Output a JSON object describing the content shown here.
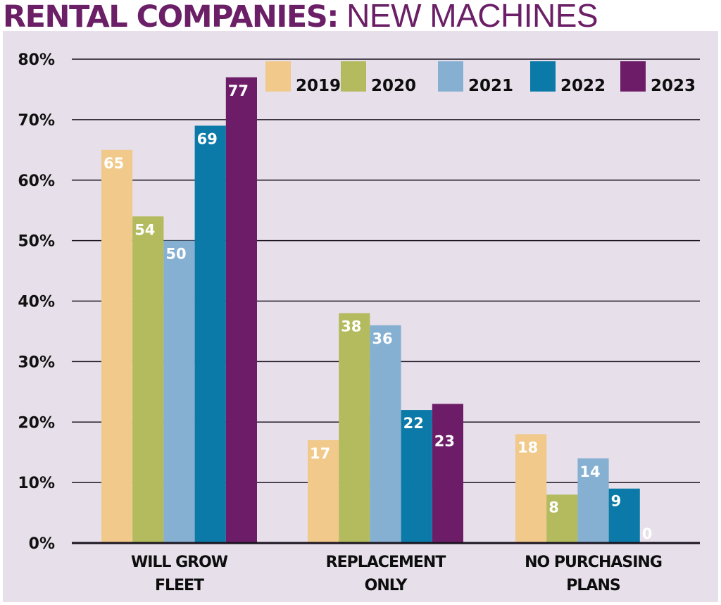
{
  "chart_data": {
    "type": "bar",
    "title_bold": "RENTAL COMPANIES:",
    "title_light": "NEW MACHINES",
    "categories": [
      [
        "WILL GROW",
        "FLEET"
      ],
      [
        "REPLACEMENT",
        "ONLY"
      ],
      [
        "NO PURCHASING",
        "PLANS"
      ]
    ],
    "series": [
      {
        "name": "2019",
        "color": "#f0c98b",
        "values": [
          65,
          17,
          18
        ]
      },
      {
        "name": "2020",
        "color": "#b3bb5e",
        "values": [
          54,
          38,
          8
        ]
      },
      {
        "name": "2021",
        "color": "#86b0d1",
        "values": [
          50,
          36,
          14
        ]
      },
      {
        "name": "2022",
        "color": "#0b7aa8",
        "values": [
          69,
          22,
          9
        ]
      },
      {
        "name": "2023",
        "color": "#6d1d68",
        "values": [
          77,
          23,
          0
        ]
      }
    ],
    "yticks": [
      0,
      10,
      20,
      30,
      40,
      50,
      60,
      70,
      80
    ],
    "ytick_suffix": "%",
    "ylim": [
      0,
      80
    ],
    "xlabel": "",
    "ylabel": "",
    "grid": true,
    "legend_position": "top-right",
    "data_label_color": "#ffffff",
    "background": "#e7dfea",
    "title_color": "#6b1f66"
  }
}
